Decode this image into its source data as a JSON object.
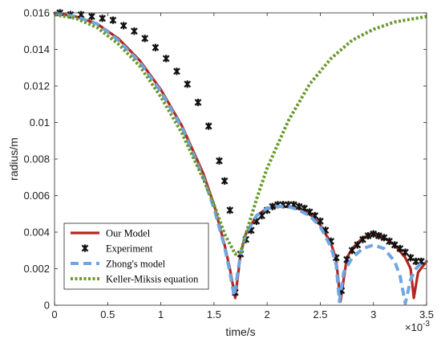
{
  "chart_data": {
    "type": "line",
    "title": "",
    "xlabel": "time/s",
    "ylabel": "radius/m",
    "x_exponent_label": "×10",
    "x_exponent_power": "-3",
    "xlim": [
      0,
      3.5
    ],
    "ylim": [
      0,
      0.016
    ],
    "xticks": [
      0,
      0.5,
      1,
      1.5,
      2,
      2.5,
      3,
      3.5
    ],
    "xtick_labels": [
      "0",
      "0.5",
      "1",
      "1.5",
      "2",
      "2.5",
      "3",
      "3.5"
    ],
    "yticks": [
      0,
      0.002,
      0.004,
      0.006,
      0.008,
      0.01,
      0.012,
      0.014,
      0.016
    ],
    "ytick_labels": [
      "0",
      "0.002",
      "0.004",
      "0.006",
      "0.008",
      "0.01",
      "0.012",
      "0.014",
      "0.016"
    ],
    "grid": false,
    "legend_position": "bottom-left",
    "series": [
      {
        "name": "Our Model",
        "style": "solid-line",
        "color": "#b5261e",
        "x": [
          0,
          0.2,
          0.4,
          0.6,
          0.8,
          1.0,
          1.2,
          1.4,
          1.5,
          1.6,
          1.65,
          1.7,
          1.75,
          1.8,
          1.9,
          2.0,
          2.1,
          2.2,
          2.3,
          2.4,
          2.5,
          2.6,
          2.65,
          2.69,
          2.75,
          2.8,
          2.9,
          3.0,
          3.1,
          3.2,
          3.3,
          3.35,
          3.38,
          3.42,
          3.5
        ],
        "y": [
          0.016,
          0.0158,
          0.0154,
          0.0146,
          0.0134,
          0.0118,
          0.0098,
          0.0072,
          0.0055,
          0.0033,
          0.002,
          0.0004,
          0.0028,
          0.0039,
          0.0049,
          0.0053,
          0.0054,
          0.0054,
          0.0053,
          0.005,
          0.0044,
          0.0034,
          0.0025,
          0.0002,
          0.0026,
          0.0031,
          0.0037,
          0.0039,
          0.0037,
          0.0033,
          0.0026,
          0.002,
          0.0004,
          0.0018,
          0.0024
        ]
      },
      {
        "name": "Experiment",
        "style": "markers",
        "color": "#111111",
        "x": [
          0.05,
          0.15,
          0.25,
          0.35,
          0.45,
          0.55,
          0.65,
          0.75,
          0.85,
          0.95,
          1.05,
          1.15,
          1.25,
          1.35,
          1.45,
          1.55,
          1.6,
          1.65,
          1.7,
          1.75,
          1.8,
          1.85,
          1.9,
          1.95,
          2.0,
          2.05,
          2.1,
          2.15,
          2.2,
          2.25,
          2.3,
          2.35,
          2.4,
          2.45,
          2.5,
          2.55,
          2.6,
          2.65,
          2.7,
          2.75,
          2.8,
          2.85,
          2.9,
          2.95,
          3.0,
          3.05,
          3.1,
          3.15,
          3.2,
          3.25,
          3.3,
          3.35,
          3.4,
          3.45
        ],
        "y": [
          0.016,
          0.0159,
          0.0159,
          0.0158,
          0.0157,
          0.0156,
          0.0153,
          0.015,
          0.0146,
          0.0141,
          0.0135,
          0.0128,
          0.0121,
          0.0111,
          0.0098,
          0.0079,
          0.0068,
          0.0052,
          0.0007,
          0.0028,
          0.0036,
          0.0041,
          0.0046,
          0.0049,
          0.0052,
          0.0054,
          0.0055,
          0.0055,
          0.0055,
          0.0055,
          0.0054,
          0.0053,
          0.0051,
          0.0049,
          0.0046,
          0.0041,
          0.0035,
          0.0026,
          0.0008,
          0.0025,
          0.003,
          0.0033,
          0.0036,
          0.0038,
          0.0039,
          0.0038,
          0.0037,
          0.0035,
          0.0033,
          0.0031,
          0.0029,
          0.0026,
          0.0024,
          0.0024
        ]
      },
      {
        "name": "Zhong's model",
        "style": "dashed-line",
        "color": "#6fa6e4",
        "x": [
          0,
          0.2,
          0.4,
          0.6,
          0.8,
          1.0,
          1.2,
          1.4,
          1.5,
          1.6,
          1.65,
          1.69,
          1.75,
          1.8,
          1.9,
          2.0,
          2.1,
          2.2,
          2.3,
          2.4,
          2.5,
          2.6,
          2.65,
          2.68,
          2.72,
          2.8,
          2.9,
          3.0,
          3.1,
          3.2,
          3.25,
          3.3,
          3.35,
          3.4,
          3.45,
          3.5
        ],
        "y": [
          0.016,
          0.0158,
          0.0154,
          0.0145,
          0.0133,
          0.0117,
          0.0097,
          0.007,
          0.0053,
          0.0032,
          0.0018,
          0.0005,
          0.0028,
          0.0039,
          0.0049,
          0.0053,
          0.0054,
          0.0054,
          0.0052,
          0.0049,
          0.0043,
          0.0032,
          0.0022,
          0.0002,
          0.0018,
          0.0026,
          0.0031,
          0.0033,
          0.0031,
          0.0024,
          0.0016,
          0.0001,
          0.0014,
          0.002,
          0.0023,
          0.0024
        ]
      },
      {
        "name": "Keller-Miksis equation",
        "style": "dotted-line",
        "color": "#6b9a2e",
        "x": [
          0,
          0.2,
          0.4,
          0.6,
          0.8,
          1.0,
          1.2,
          1.4,
          1.5,
          1.6,
          1.7,
          1.75,
          1.8,
          1.9,
          2.0,
          2.2,
          2.4,
          2.6,
          2.8,
          3.0,
          3.2,
          3.4,
          3.5
        ],
        "y": [
          0.0159,
          0.0157,
          0.0152,
          0.0143,
          0.0131,
          0.0114,
          0.0094,
          0.0069,
          0.0055,
          0.0039,
          0.0028,
          0.0029,
          0.0039,
          0.0058,
          0.0075,
          0.0101,
          0.0121,
          0.0135,
          0.0145,
          0.0151,
          0.0155,
          0.0157,
          0.0158
        ]
      }
    ]
  }
}
